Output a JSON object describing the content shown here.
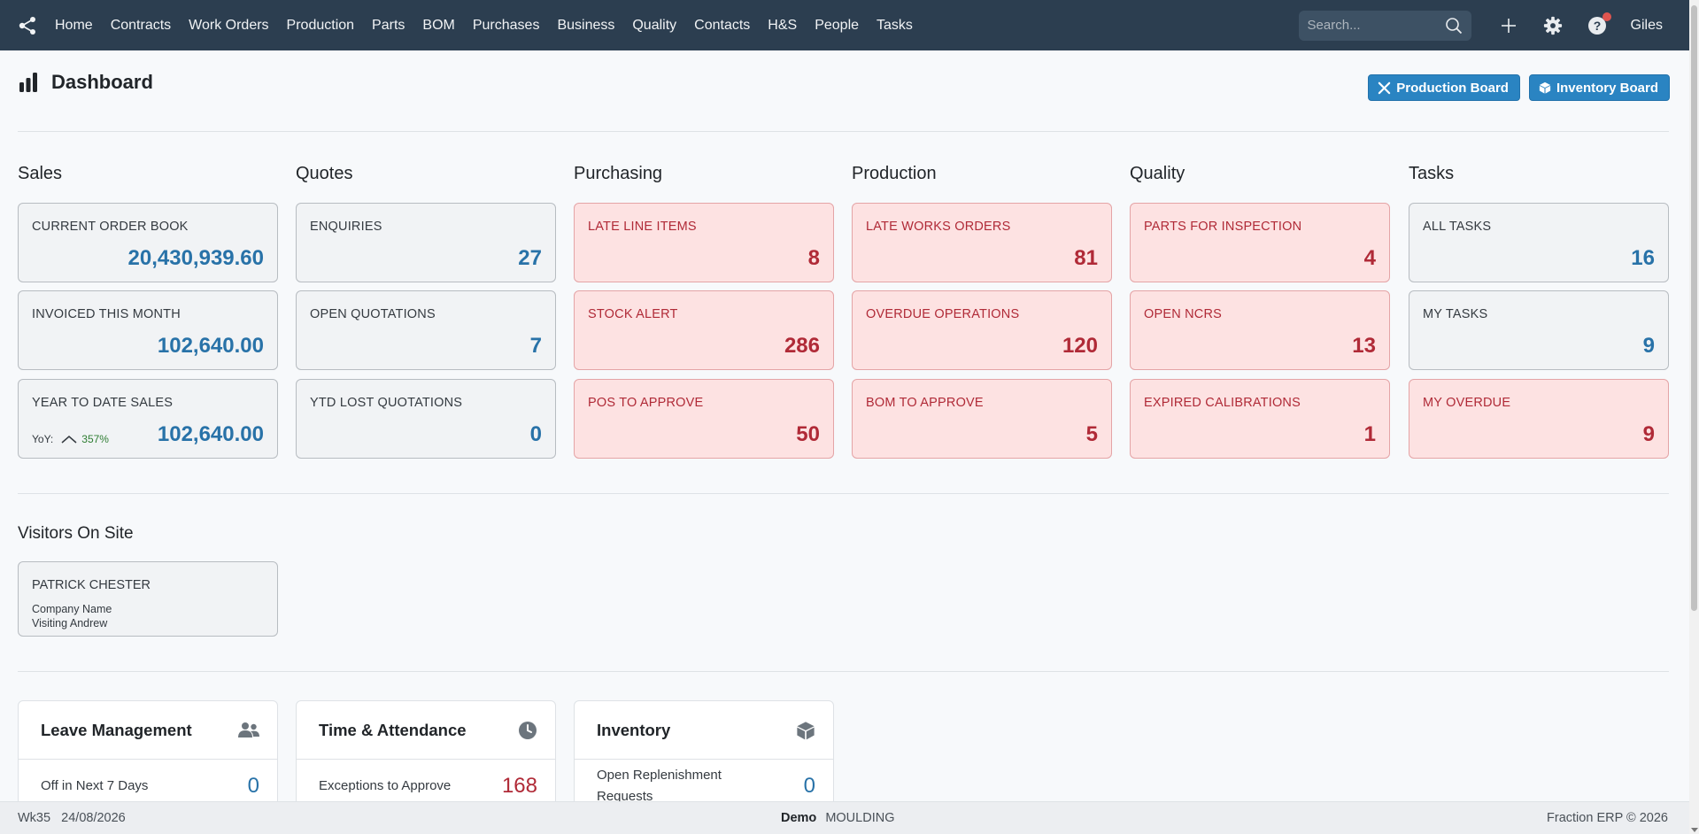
{
  "nav": {
    "items": [
      "Home",
      "Contracts",
      "Work Orders",
      "Production",
      "Parts",
      "BOM",
      "Purchases",
      "Business",
      "Quality",
      "Contacts",
      "H&S",
      "People",
      "Tasks"
    ],
    "search_placeholder": "Search...",
    "user": "Giles"
  },
  "header": {
    "title": "Dashboard",
    "production_board": "Production Board",
    "inventory_board": "Inventory Board"
  },
  "sections": [
    {
      "title": "Sales",
      "cards": [
        {
          "label": "CURRENT ORDER BOOK",
          "value": "20,430,939.60",
          "alert": false
        },
        {
          "label": "INVOICED THIS MONTH",
          "value": "102,640.00",
          "alert": false
        },
        {
          "label": "YEAR TO DATE SALES",
          "value": "102,640.00",
          "alert": false
        }
      ]
    },
    {
      "title": "Quotes",
      "cards": [
        {
          "label": "ENQUIRIES",
          "value": "27",
          "alert": false
        },
        {
          "label": "OPEN QUOTATIONS",
          "value": "7",
          "alert": false
        },
        {
          "label": "YTD LOST QUOTATIONS",
          "value": "0",
          "alert": false
        }
      ]
    },
    {
      "title": "Purchasing",
      "cards": [
        {
          "label": "LATE LINE ITEMS",
          "value": "8",
          "alert": true
        },
        {
          "label": "STOCK ALERT",
          "value": "286",
          "alert": true
        },
        {
          "label": "POS TO APPROVE",
          "value": "50",
          "alert": true
        }
      ]
    },
    {
      "title": "Production",
      "cards": [
        {
          "label": "LATE WORKS ORDERS",
          "value": "81",
          "alert": true
        },
        {
          "label": "OVERDUE OPERATIONS",
          "value": "120",
          "alert": true
        },
        {
          "label": "BOM TO APPROVE",
          "value": "5",
          "alert": true
        }
      ]
    },
    {
      "title": "Quality",
      "cards": [
        {
          "label": "PARTS FOR INSPECTION",
          "value": "4",
          "alert": true
        },
        {
          "label": "OPEN NCRS",
          "value": "13",
          "alert": true
        },
        {
          "label": "EXPIRED CALIBRATIONS",
          "value": "1",
          "alert": true
        }
      ]
    },
    {
      "title": "Tasks",
      "cards": [
        {
          "label": "ALL TASKS",
          "value": "16",
          "alert": false
        },
        {
          "label": "MY TASKS",
          "value": "9",
          "alert": false
        },
        {
          "label": "MY OVERDUE",
          "value": "9",
          "alert": true
        }
      ]
    }
  ],
  "yoy": {
    "label": "YoY:",
    "value": "357%"
  },
  "visitors": {
    "title": "Visitors On Site",
    "name": "PATRICK CHESTER",
    "company": "Company Name",
    "visiting": "Visiting Andrew"
  },
  "panels": [
    {
      "title": "Leave Management",
      "icon": "users-icon",
      "row_label": "Off in Next 7 Days",
      "row_value": "0",
      "red": false
    },
    {
      "title": "Time & Attendance",
      "icon": "clock-icon",
      "row_label": "Exceptions to Approve",
      "row_value": "168",
      "red": true
    },
    {
      "title": "Inventory",
      "icon": "box-icon",
      "row_label": "Open Replenishment Requests",
      "row_value": "0",
      "red": false
    }
  ],
  "footer": {
    "week": "Wk35",
    "date": "24/08/2026",
    "env": "Demo",
    "company": "MOULDING",
    "copyright": "Fraction ERP © 2026"
  },
  "colors": {
    "nav_bg": "#2c3e50",
    "accent": "#2a84c2",
    "value_blue": "#2872a8",
    "alert_red": "#b02a37",
    "alert_bg": "#fde2e2"
  }
}
